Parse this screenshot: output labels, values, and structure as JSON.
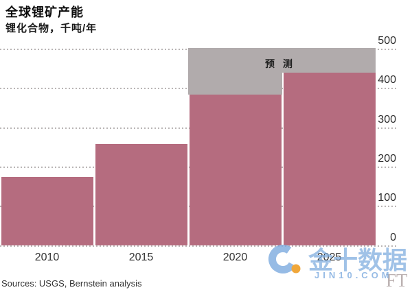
{
  "header": {
    "title": "全球锂矿产能",
    "subtitle": "锂化合物，千吨/年"
  },
  "chart_data": {
    "type": "bar",
    "categories": [
      "2010",
      "2015",
      "2020",
      "2025"
    ],
    "values": [
      175,
      260,
      385,
      440
    ],
    "forecast": [
      false,
      false,
      true,
      true
    ],
    "forecast_label": "预 测",
    "title": "全球锂矿产能",
    "ylabel": "锂化合物，千吨/年",
    "xlabel": "",
    "ylim": [
      0,
      500
    ],
    "yticks": [
      0,
      100,
      200,
      300,
      400,
      500
    ],
    "axis_side": "right",
    "grid": "dotted-horizontal",
    "legend_position": "none",
    "bar_color": "#b56c7f",
    "forecast_band_color": "#b1abac",
    "gridline_color": "#b9b5b5",
    "tick_label_color": "#2e2e2e"
  },
  "footer": {
    "source": "Sources: USGS, Bernstein analysis"
  },
  "watermark": {
    "cn_text": "金十数据",
    "domain_text": "JIN10.COM",
    "ft_text": "FT",
    "blue": "rgba(124,170,222,0.8)",
    "blue_soft": "rgba(124,170,222,0.72)",
    "orange": "#f0a73a",
    "ft_color": "rgba(143,126,126,0.6)"
  }
}
